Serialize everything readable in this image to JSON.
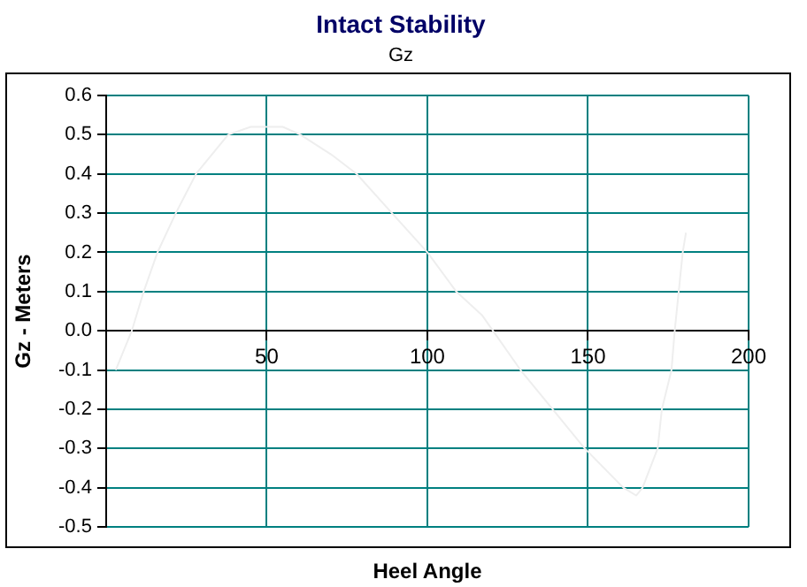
{
  "chart_data": {
    "type": "line",
    "title": "Intact Stability",
    "subtitle": "Gz",
    "xlabel": "Heel Angle",
    "ylabel": "Gz - Meters",
    "series": [
      {
        "color": "#eeeeee",
        "x": [
          3,
          8,
          11.7,
          16,
          21.7,
          28,
          38,
          45,
          50,
          55,
          60.5,
          70,
          78,
          89,
          100,
          109,
          117,
          129,
          139,
          149,
          161,
          165,
          167,
          171.7,
          173,
          176,
          177,
          179.5,
          180.5
        ],
        "values": [
          -0.1,
          0,
          0.1,
          0.2,
          0.3,
          0.4,
          0.5,
          0.52,
          0.52,
          0.52,
          0.5,
          0.45,
          0.4,
          0.3,
          0.2,
          0.1,
          0.04,
          -0.1,
          -0.2,
          -0.3,
          -0.4,
          -0.42,
          -0.4,
          -0.3,
          -0.2,
          -0.1,
          0,
          0.2,
          0.25
        ]
      }
    ],
    "xlim": [
      0,
      200
    ],
    "xticks": [
      50,
      100,
      150,
      200
    ],
    "ylim": [
      -0.5,
      0.6
    ],
    "yticks": [
      -0.5,
      -0.4,
      -0.3,
      -0.2,
      -0.1,
      {
        "value": 0,
        "label": "0.0"
      },
      0.1,
      0.2,
      0.3,
      0.4,
      0.5,
      0.6
    ],
    "grid": true,
    "legend": false,
    "marker": "none",
    "line_style": "solid"
  }
}
